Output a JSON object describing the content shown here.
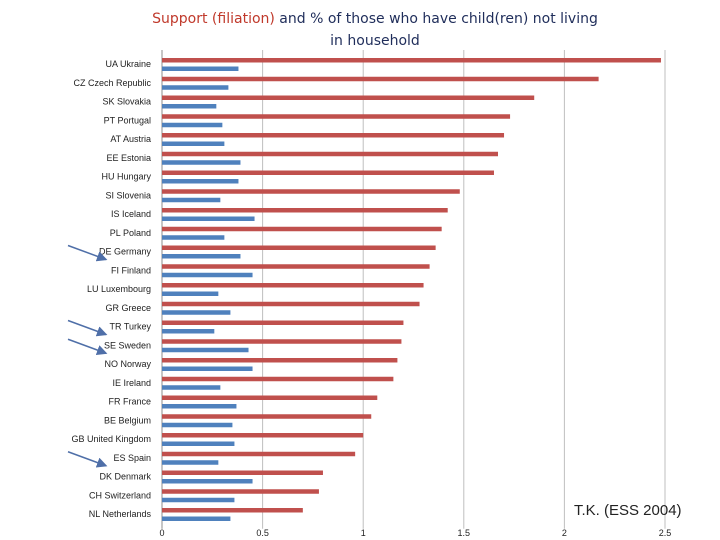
{
  "title": {
    "part1": "Support (filiation)",
    "part2": " and % of those who have child(ren) not living",
    "line2": "in household"
  },
  "credit": "T.K. (ESS 2004)",
  "colors": {
    "support": "#c0504d",
    "not_living": "#4f81bd",
    "grid": "#bfbfbf",
    "arrow": "#4f6fa8"
  },
  "chart_data": {
    "type": "bar",
    "orientation": "horizontal",
    "categories": [
      "UA Ukraine",
      "CZ Czech Republic",
      "SK Slovakia",
      "PT Portugal",
      "AT Austria",
      "EE Estonia",
      "HU Hungary",
      "SI Slovenia",
      "IS Iceland",
      "PL Poland",
      "DE Germany",
      "FI Finland",
      "LU Luxembourg",
      "GR Greece",
      "TR Turkey",
      "SE Sweden",
      "NO Norway",
      "IE Ireland",
      "FR France",
      "BE Belgium",
      "GB United Kingdom",
      "ES Spain",
      "DK Denmark",
      "CH Switzerland",
      "NL Netherlands"
    ],
    "series": [
      {
        "name": "Support (filiation)",
        "color": "#c0504d",
        "values": [
          2.48,
          2.17,
          1.85,
          1.73,
          1.7,
          1.67,
          1.65,
          1.48,
          1.42,
          1.39,
          1.36,
          1.33,
          1.3,
          1.28,
          1.2,
          1.19,
          1.17,
          1.15,
          1.07,
          1.04,
          1.0,
          0.96,
          0.8,
          0.78,
          0.7
        ]
      },
      {
        "name": "% of those who have child(ren) not living in household",
        "color": "#4f81bd",
        "values": [
          0.38,
          0.33,
          0.27,
          0.3,
          0.31,
          0.39,
          0.38,
          0.29,
          0.46,
          0.31,
          0.39,
          0.45,
          0.28,
          0.34,
          0.26,
          0.43,
          0.45,
          0.29,
          0.37,
          0.35,
          0.36,
          0.28,
          0.45,
          0.36,
          0.34
        ]
      }
    ],
    "xlim": [
      0,
      2.5
    ],
    "xticks": [
      "0",
      "0.5",
      "1",
      "1.5",
      "2",
      "2.5"
    ],
    "grid": true,
    "legend": "none",
    "highlighted": [
      "DE Germany",
      "TR Turkey",
      "SE Sweden",
      "ES Spain"
    ]
  }
}
